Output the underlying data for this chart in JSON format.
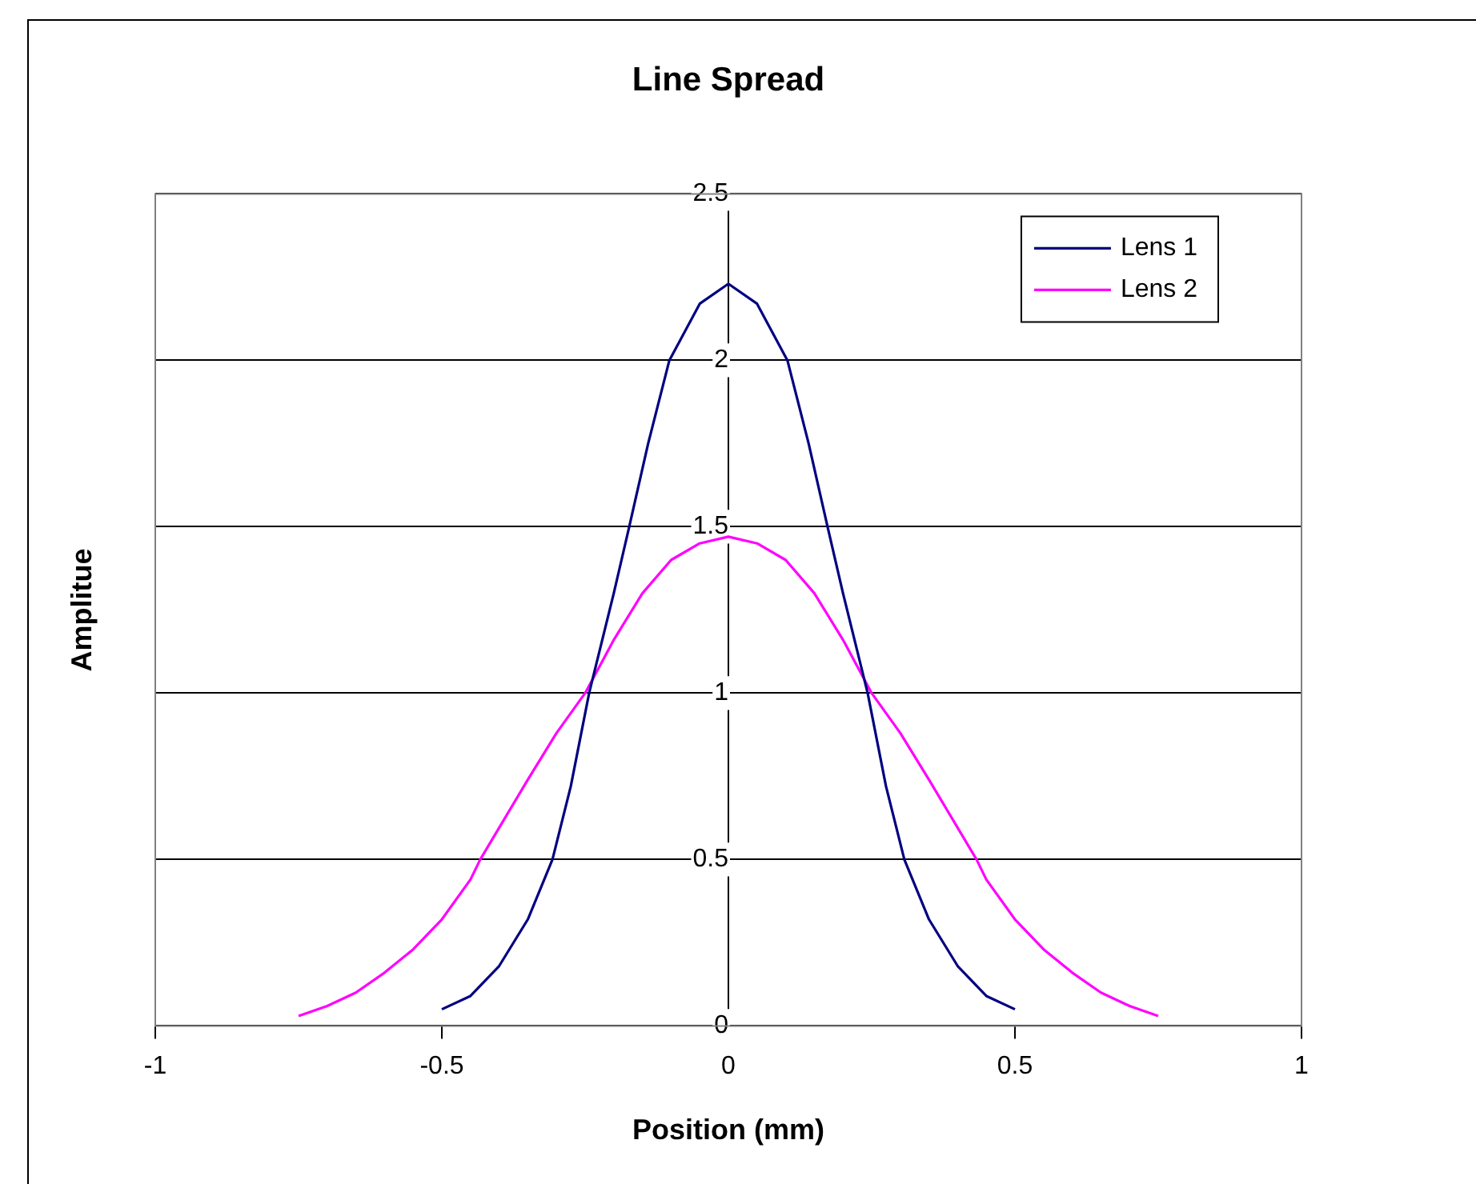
{
  "chart_data": {
    "type": "line",
    "title": "Line Spread",
    "xlabel": "Position (mm)",
    "ylabel": "Amplitue",
    "xlim": [
      -1,
      1
    ],
    "xticks": [
      -1,
      -0.5,
      0,
      0.5,
      1
    ],
    "ylim": [
      0,
      2.5
    ],
    "yticks": [
      0,
      0.5,
      1,
      1.5,
      2,
      2.5
    ],
    "grid": "y",
    "legend": "top right",
    "marker": "none",
    "line_style": "solid",
    "series": [
      {
        "name": "Lens 1",
        "color": "#000080",
        "x": [
          -0.5,
          -0.45,
          -0.4,
          -0.35,
          -0.307,
          -0.275,
          -0.243,
          -0.2,
          -0.173,
          -0.14,
          -0.103,
          -0.05,
          0,
          0.05,
          0.103,
          0.14,
          0.173,
          0.2,
          0.243,
          0.275,
          0.307,
          0.35,
          0.4,
          0.45,
          0.5
        ],
        "values": [
          0.05,
          0.09,
          0.18,
          0.32,
          0.5,
          0.72,
          1.0,
          1.3,
          1.5,
          1.75,
          2.0,
          2.17,
          2.23,
          2.17,
          2.0,
          1.75,
          1.5,
          1.3,
          1.0,
          0.72,
          0.5,
          0.32,
          0.18,
          0.09,
          0.05
        ]
      },
      {
        "name": "Lens 2",
        "color": "#ff00ff",
        "x": [
          -0.75,
          -0.7,
          -0.65,
          -0.6,
          -0.55,
          -0.5,
          -0.45,
          -0.433,
          -0.35,
          -0.3,
          -0.25,
          -0.2,
          -0.15,
          -0.1,
          -0.05,
          0,
          0.05,
          0.1,
          0.15,
          0.2,
          0.25,
          0.3,
          0.35,
          0.433,
          0.45,
          0.5,
          0.55,
          0.6,
          0.65,
          0.7,
          0.75
        ],
        "values": [
          0.03,
          0.06,
          0.1,
          0.16,
          0.23,
          0.32,
          0.44,
          0.5,
          0.74,
          0.88,
          1.0,
          1.16,
          1.3,
          1.4,
          1.45,
          1.47,
          1.45,
          1.4,
          1.3,
          1.16,
          1.0,
          0.88,
          0.74,
          0.5,
          0.44,
          0.32,
          0.23,
          0.16,
          0.1,
          0.06,
          0.03
        ]
      }
    ]
  }
}
